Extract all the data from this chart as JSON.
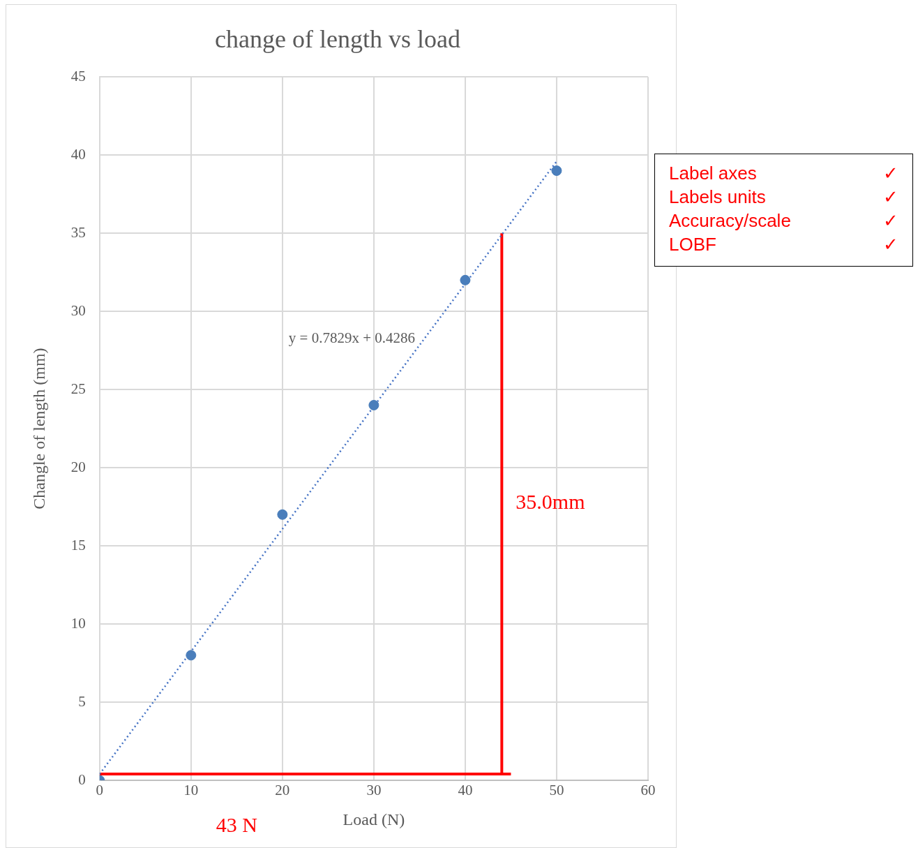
{
  "chart_data": [
    {
      "type": "scatter",
      "title": "change of length vs load",
      "xlabel": "Load (N)",
      "ylabel": "Changle of length (mm)",
      "xlim": [
        0,
        60
      ],
      "xticks": [
        0,
        10,
        20,
        30,
        40,
        50,
        60
      ],
      "ylim": [
        0,
        45
      ],
      "yticks": [
        0,
        5,
        10,
        15,
        20,
        25,
        30,
        35,
        40,
        45
      ],
      "grid": true,
      "legend": false,
      "series": [
        {
          "type": "scatter",
          "color": "#4a7ebb",
          "marker": "circle",
          "x": [
            0,
            10,
            20,
            30,
            40,
            50
          ],
          "values": [
            0,
            8,
            17,
            24,
            32,
            39
          ]
        },
        {
          "type": "line",
          "color": "#4472c4",
          "marker": "none",
          "line_style": "dotted",
          "x": [
            0,
            50
          ],
          "values": [
            0.4,
            39.6
          ]
        },
        {
          "type": "line",
          "name": "35.0mm",
          "color": "#ff0000",
          "marker": "none",
          "line_style": "solid",
          "x": [
            44,
            44
          ],
          "values": [
            0.4,
            35
          ]
        },
        {
          "type": "line",
          "name": "43 N",
          "color": "#ff0000",
          "marker": "none",
          "line_style": "solid",
          "x": [
            0,
            45
          ],
          "values": [
            0.4,
            0.4
          ]
        }
      ],
      "annotations": [
        "y = 0.7829x + 0.4286"
      ]
    },
    {
      "type": "other",
      "annotations": [
        "Label axes",
        "✓",
        "Labels units",
        "✓",
        "Accuracy/scale",
        "✓",
        "LOBF",
        "✓"
      ]
    }
  ]
}
